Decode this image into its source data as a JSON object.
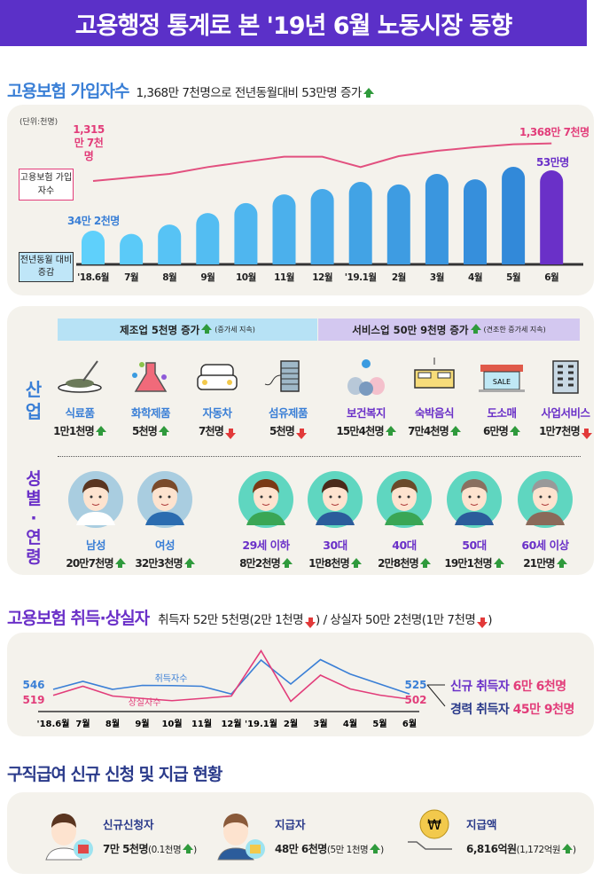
{
  "header": {
    "title": "고용행정 통계로 본 '19년 6월 노동시장 동향"
  },
  "insured": {
    "title": "고용보험 가입자수",
    "summary": "1,368만 7천명으로 전년동월대비 53만명 증가",
    "unit": "(단위:천명)",
    "line_label": "고용보험 가입자수",
    "bar_label": "전년동월 대비 증감",
    "start_line_label": "1,315만 7천명",
    "end_line_label": "1,368만 7천명",
    "start_bar_label": "34만 2천명",
    "end_bar_label": "53만명"
  },
  "industry": {
    "side_label": "산업",
    "manufacturing": {
      "label": "제조업 5천명 증가",
      "note": "(증가세 지속)"
    },
    "service": {
      "label": "서비스업 50만 9천명 증가",
      "note": "(견조한 증가세 지속)"
    },
    "items": [
      {
        "name": "식료품",
        "value": "1만1천명",
        "trend": "up",
        "icon": "food-bowl"
      },
      {
        "name": "화학제품",
        "value": "5천명",
        "trend": "up",
        "icon": "flask"
      },
      {
        "name": "자동차",
        "value": "7천명",
        "trend": "down",
        "icon": "car"
      },
      {
        "name": "섬유제품",
        "value": "5천명",
        "trend": "down",
        "icon": "thread-spool"
      },
      {
        "name": "보건복지",
        "value": "15만4천명",
        "trend": "up",
        "icon": "people-care"
      },
      {
        "name": "숙박음식",
        "value": "7만4천명",
        "trend": "up",
        "icon": "bed"
      },
      {
        "name": "도소매",
        "value": "6만명",
        "trend": "up",
        "icon": "store",
        "sign": "SALE"
      },
      {
        "name": "사업서비스",
        "value": "1만7천명",
        "trend": "down",
        "icon": "building"
      }
    ]
  },
  "demographics": {
    "side_label": "성별·연령",
    "items": [
      {
        "name": "남성",
        "value": "20만7천명",
        "trend": "up"
      },
      {
        "name": "여성",
        "value": "32만3천명",
        "trend": "up"
      },
      {
        "name": "29세 이하",
        "value": "8만2천명",
        "trend": "up"
      },
      {
        "name": "30대",
        "value": "1만8천명",
        "trend": "up"
      },
      {
        "name": "40대",
        "value": "2만8천명",
        "trend": "up"
      },
      {
        "name": "50대",
        "value": "19만1천명",
        "trend": "up"
      },
      {
        "name": "60세 이상",
        "value": "21만명",
        "trend": "up"
      }
    ]
  },
  "flows": {
    "title": "고용보험 취득·상실자",
    "summary_acq": "취득자 52만 5천명(2만 1천명",
    "summary_sep": ") / 상실자 50만 2천명(1만 7천명",
    "new_label": "신규 취득자",
    "new_value": "6만 6천명",
    "career_label": "경력 취득자",
    "career_value": "45만 9천명"
  },
  "benefits": {
    "title": "구직급여 신규 신청 및 지급 현황",
    "items": [
      {
        "label": "신규신청자",
        "value": "7만 5천명",
        "change": "(0.1천명",
        "trend": "up"
      },
      {
        "label": "지급자",
        "value": "48만 6천명",
        "change": "(5만 1천명",
        "trend": "up"
      },
      {
        "label": "지급액",
        "value": "6,816억원",
        "change": "(1,172억원",
        "trend": "up"
      }
    ]
  },
  "colors": {
    "header": "#5b30c8",
    "blue": "#3a7fd6",
    "purple": "#6a30c8",
    "pink": "#e23d7a",
    "up": "#2f9a3c",
    "down": "#e23a3a"
  },
  "chart_data": [
    {
      "type": "bar+line",
      "categories": [
        "'18.6월",
        "7월",
        "8월",
        "9월",
        "10월",
        "11월",
        "12월",
        "'19.1월",
        "2월",
        "3월",
        "4월",
        "5월",
        "6월"
      ],
      "series": [
        {
          "name": "전년동월 대비 증감",
          "type": "bar",
          "values": [
            342,
            332,
            361,
            397,
            428,
            455,
            472,
            494,
            486,
            519,
            502,
            541,
            530
          ]
        },
        {
          "name": "고용보험 가입자수",
          "type": "line",
          "values": [
            13157,
            13207,
            13257,
            13353,
            13428,
            13499,
            13499,
            13353,
            13507,
            13582,
            13633,
            13674,
            13687
          ]
        }
      ]
    },
    {
      "type": "line",
      "categories": [
        "'18.6월",
        "7월",
        "8월",
        "9월",
        "10월",
        "11월",
        "12월",
        "'19.1월",
        "2월",
        "3월",
        "4월",
        "5월",
        "6월"
      ],
      "series": [
        {
          "name": "취득자수",
          "values": [
            546,
            582,
            546,
            564,
            563,
            560,
            525,
            678,
            570,
            680,
            615,
            570,
            525
          ]
        },
        {
          "name": "상실자수",
          "values": [
            519,
            560,
            516,
            505,
            495,
            505,
            516,
            720,
            492,
            610,
            548,
            520,
            502
          ]
        }
      ]
    }
  ]
}
